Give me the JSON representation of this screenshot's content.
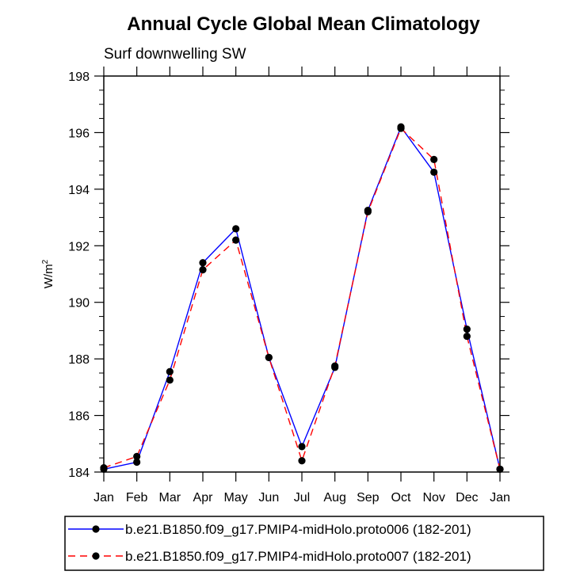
{
  "chart_data": {
    "type": "line",
    "title": "Annual Cycle Global Mean Climatology",
    "subtitle": "Surf downwelling SW",
    "xlabel": "",
    "ylabel": "W/m",
    "ylabel_superscript": "2",
    "categories": [
      "Jan",
      "Feb",
      "Mar",
      "Apr",
      "May",
      "Jun",
      "Jul",
      "Aug",
      "Sep",
      "Oct",
      "Nov",
      "Dec",
      "Jan"
    ],
    "ylim": [
      184,
      198
    ],
    "yticks": [
      "184",
      "186",
      "188",
      "190",
      "192",
      "194",
      "196",
      "198"
    ],
    "legend_position": "bottom",
    "series": [
      {
        "name": "b.e21.B1850.f09_g17.PMIP4-midHolo.proto006 (182-201)",
        "color": "#0000ff",
        "line_style": "solid",
        "values": [
          184.1,
          184.35,
          187.55,
          191.4,
          192.6,
          188.05,
          184.9,
          187.7,
          193.25,
          196.2,
          194.6,
          189.05,
          184.1
        ]
      },
      {
        "name": "b.e21.B1850.f09_g17.PMIP4-midHolo.proto007 (182-201)",
        "color": "#ff0000",
        "line_style": "dashed",
        "values": [
          184.15,
          184.55,
          187.25,
          191.15,
          192.2,
          188.05,
          184.4,
          187.75,
          193.2,
          196.15,
          195.05,
          188.8,
          184.1
        ]
      }
    ],
    "grid": false
  }
}
